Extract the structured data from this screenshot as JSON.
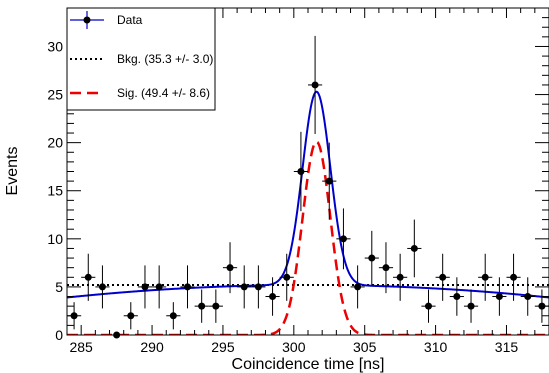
{
  "chart_data": {
    "type": "scatter",
    "title": "",
    "xlabel": "Coincidence time [ns]",
    "ylabel": "Events",
    "xlim": [
      284,
      318
    ],
    "ylim": [
      0,
      34
    ],
    "x_ticks": [
      285,
      290,
      295,
      300,
      305,
      310,
      315
    ],
    "y_ticks": [
      0,
      5,
      10,
      15,
      20,
      25,
      30
    ],
    "grid": false,
    "legend_position": "top-left",
    "series": [
      {
        "name": "Data",
        "style": "points-with-errorbars",
        "color": "#000000",
        "bin_half_width": 0.5,
        "x": [
          284.5,
          285.5,
          286.5,
          287.5,
          288.5,
          289.5,
          290.5,
          291.5,
          292.5,
          293.5,
          294.5,
          295.5,
          296.5,
          297.5,
          298.5,
          299.5,
          300.5,
          301.5,
          302.5,
          303.5,
          304.5,
          305.5,
          306.5,
          307.5,
          308.5,
          309.5,
          310.5,
          311.5,
          312.5,
          313.5,
          314.5,
          315.5,
          316.5,
          317.5
        ],
        "y": [
          2,
          6,
          5,
          0,
          2,
          5,
          5,
          2,
          5,
          3,
          3,
          7,
          5,
          5,
          4,
          6,
          17,
          26,
          16,
          10,
          5,
          8,
          7,
          6,
          9,
          3,
          6,
          4,
          3,
          6,
          4,
          6,
          4,
          3
        ]
      },
      {
        "name": "Bkg. (35.3 +/- 3.0)",
        "style": "dotted-line",
        "color": "#000000",
        "x": [
          284,
          318
        ],
        "y": [
          5.2,
          5.2
        ]
      },
      {
        "name": "Sig. (49.4 +/- 8.6)",
        "style": "dashed-line",
        "color": "#ee0000",
        "model": "gaussian",
        "amplitude": 20.1,
        "mean": 301.6,
        "sigma": 0.98
      },
      {
        "name": "",
        "style": "solid-line",
        "color": "#0000cc",
        "model": "background-plus-signal",
        "background_peak": 5.2,
        "background_peak_x": 301.0,
        "background_at_edges": 3.9,
        "amplitude": 20.1,
        "mean": 301.6,
        "sigma": 0.98
      }
    ]
  }
}
